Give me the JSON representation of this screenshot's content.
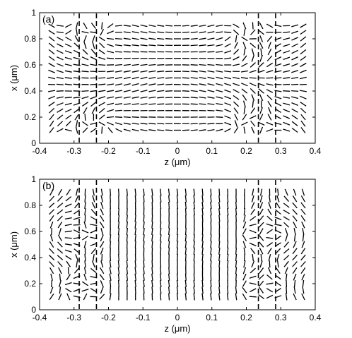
{
  "chart_data": [
    {
      "type": "quiver",
      "panel_label": "(a)",
      "xlabel": "z (μm)",
      "ylabel": "x (μm)",
      "xlim": [
        -0.4,
        0.4
      ],
      "ylim": [
        0,
        1
      ],
      "xticks": [
        "-0.4",
        "-0.3",
        "-0.2",
        "-0.1",
        "0",
        "0.1",
        "0.2",
        "0.3",
        "0.4"
      ],
      "yticks": [
        "0",
        "0.2",
        "0.4",
        "0.6",
        "0.8",
        "1"
      ],
      "grid": false,
      "dashed_lines_z": [
        -0.285,
        -0.235,
        0.235,
        0.285
      ],
      "vector_field": {
        "z_range": [
          -0.365,
          0.365
        ],
        "x_range": [
          0.1,
          0.9
        ],
        "columns": 31,
        "rows": 17,
        "pattern": "in-plane unit directors, nearly horizontal in bulk, converging at x≈0.83 and x≈0.15 near z=±0.235"
      }
    },
    {
      "type": "quiver",
      "panel_label": "(b)",
      "xlabel": "z (μm)",
      "ylabel": "x (μm)",
      "xlim": [
        -0.4,
        0.4
      ],
      "ylim": [
        0,
        1
      ],
      "xticks": [
        "-0.4",
        "-0.3",
        "-0.2",
        "-0.1",
        "0",
        "0.1",
        "0.2",
        "0.3",
        "0.4"
      ],
      "yticks": [
        "0",
        "0.2",
        "0.4",
        "0.6",
        "0.8",
        "1"
      ],
      "grid": false,
      "dashed_lines_z": [
        -0.285,
        -0.235,
        0.235,
        0.285
      ],
      "vector_field": {
        "z_range": [
          -0.365,
          0.365
        ],
        "x_range": [
          0.1,
          0.9
        ],
        "columns": 31,
        "rows": 17,
        "pattern": "in-plane unit directors, nearly vertical in bulk, fan structures centered at x≈0.58 and x≈0.17 near z=±0.24 and z=±0.29"
      }
    }
  ]
}
